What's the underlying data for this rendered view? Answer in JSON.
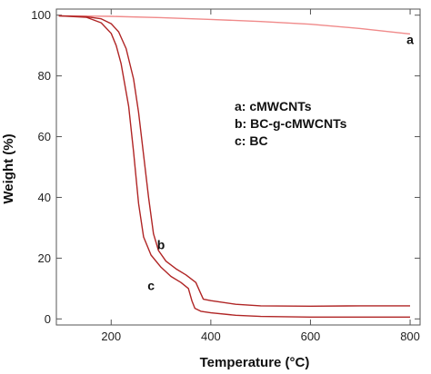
{
  "chart_data": {
    "type": "line",
    "xlabel": "Temperature (°C)",
    "ylabel": "Weight (%)",
    "xlim": [
      90,
      820
    ],
    "ylim": [
      -2,
      102
    ],
    "xticks": [
      200,
      400,
      600,
      800
    ],
    "yticks": [
      0,
      20,
      40,
      60,
      80,
      100
    ],
    "grid": false,
    "legend": [
      "a: cMWCNTs",
      "b: BC-g-cMWCNTs",
      "c: BC"
    ],
    "legend_position": "center-right",
    "series": [
      {
        "label": "a",
        "color": "#f08a8a",
        "x": [
          95,
          150,
          200,
          300,
          400,
          500,
          600,
          700,
          800
        ],
        "y": [
          99.8,
          99.7,
          99.6,
          99.2,
          98.6,
          97.9,
          97.0,
          95.6,
          93.8
        ]
      },
      {
        "label": "b",
        "color": "#b02525",
        "x": [
          95,
          150,
          180,
          200,
          215,
          230,
          245,
          255,
          265,
          275,
          285,
          295,
          310,
          330,
          350,
          370,
          378,
          385,
          400,
          450,
          500,
          600,
          700,
          800
        ],
        "y": [
          99.8,
          99.5,
          98.8,
          97.2,
          94.5,
          89.0,
          79.0,
          68.0,
          54.0,
          40.0,
          28.0,
          22.5,
          19.0,
          16.5,
          14.5,
          12.0,
          9.0,
          6.5,
          6.0,
          4.8,
          4.3,
          4.2,
          4.3,
          4.3
        ]
      },
      {
        "label": "c",
        "color": "#b02525",
        "x": [
          95,
          150,
          180,
          200,
          210,
          220,
          235,
          245,
          255,
          265,
          280,
          300,
          320,
          340,
          355,
          362,
          368,
          380,
          400,
          450,
          500,
          600,
          700,
          800
        ],
        "y": [
          99.8,
          99.3,
          97.5,
          94.0,
          90.0,
          84.0,
          70.0,
          55.0,
          38.0,
          27.0,
          21.0,
          17.0,
          14.0,
          12.0,
          10.0,
          6.0,
          3.5,
          2.5,
          2.0,
          1.2,
          0.8,
          0.6,
          0.6,
          0.6
        ]
      }
    ],
    "curve_labels": [
      {
        "text": "a",
        "x": 800,
        "y": 90.5
      },
      {
        "text": "b",
        "x": 300,
        "y": 23
      },
      {
        "text": "c",
        "x": 280,
        "y": 9.5
      }
    ]
  }
}
